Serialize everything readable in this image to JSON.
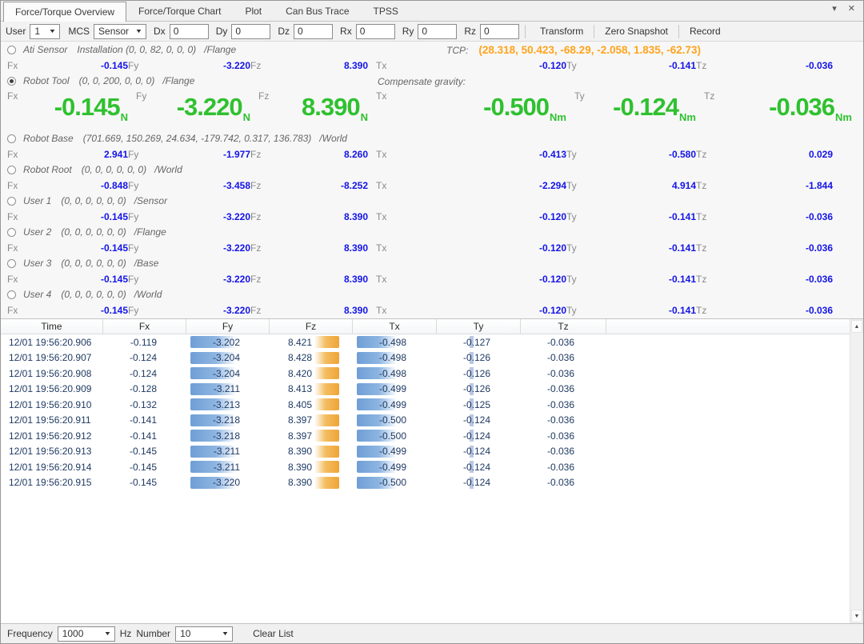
{
  "window": {
    "collapse_icon": "▾",
    "close_icon": "✕",
    "scroll_up_icon": "▲",
    "scroll_down_icon": "▼",
    "combo_arrow_icon": "▼"
  },
  "tabs": [
    {
      "label": "Force/Torque Overview",
      "active": true
    },
    {
      "label": "Force/Torque Chart",
      "active": false
    },
    {
      "label": "Plot",
      "active": false
    },
    {
      "label": "Can Bus Trace",
      "active": false
    },
    {
      "label": "TPSS",
      "active": false
    }
  ],
  "toolbar": {
    "user_label": "User",
    "user_value": "1",
    "mcs_label": "MCS",
    "mcs_value": "Sensor",
    "fields": [
      {
        "label": "Dx",
        "value": "0"
      },
      {
        "label": "Dy",
        "value": "0"
      },
      {
        "label": "Dz",
        "value": "0"
      },
      {
        "label": "Rx",
        "value": "0"
      },
      {
        "label": "Ry",
        "value": "0"
      },
      {
        "label": "Rz",
        "value": "0"
      }
    ],
    "buttons": [
      "Transform",
      "Zero Snapshot",
      "Record"
    ]
  },
  "tcp": {
    "label": "TCP:",
    "value": "(28.318, 50.423, -68.29, -2.058, 1.835, -62.73)"
  },
  "compensate_gravity_label": "Compensate gravity:",
  "axis": {
    "labels": [
      "Fx",
      "Fy",
      "Fz",
      "Tx",
      "Ty",
      "Tz"
    ],
    "big_units": [
      "N",
      "N",
      "N",
      "Nm",
      "Nm",
      "Nm"
    ]
  },
  "sensors": [
    {
      "name": "Ati Sensor",
      "params": "Installation (0, 0, 82, 0, 0, 0)",
      "frame": "/Flange",
      "selected": false,
      "big": false,
      "values": [
        "-0.145",
        "-3.220",
        "8.390",
        "-0.120",
        "-0.141",
        "-0.036"
      ]
    },
    {
      "name": "Robot Tool",
      "params": "(0, 0, 200, 0, 0, 0)",
      "frame": "/Flange",
      "selected": true,
      "big": true,
      "values": [
        "-0.145",
        "-3.220",
        "8.390",
        "-0.500",
        "-0.124",
        "-0.036"
      ]
    },
    {
      "name": "Robot Base",
      "params": "(701.669, 150.269, 24.634, -179.742, 0.317, 136.783)",
      "frame": "/World",
      "selected": false,
      "big": false,
      "values": [
        "2.941",
        "-1.977",
        "8.260",
        "-0.413",
        "-0.580",
        "0.029"
      ]
    },
    {
      "name": "Robot Root",
      "params": "(0, 0, 0, 0, 0, 0)",
      "frame": "/World",
      "selected": false,
      "big": false,
      "values": [
        "-0.848",
        "-3.458",
        "-8.252",
        "-2.294",
        "4.914",
        "-1.844"
      ]
    },
    {
      "name": "User 1",
      "params": "(0, 0, 0, 0, 0, 0)",
      "frame": "/Sensor",
      "selected": false,
      "big": false,
      "values": [
        "-0.145",
        "-3.220",
        "8.390",
        "-0.120",
        "-0.141",
        "-0.036"
      ]
    },
    {
      "name": "User 2",
      "params": "(0, 0, 0, 0, 0, 0)",
      "frame": "/Flange",
      "selected": false,
      "big": false,
      "values": [
        "-0.145",
        "-3.220",
        "8.390",
        "-0.120",
        "-0.141",
        "-0.036"
      ]
    },
    {
      "name": "User 3",
      "params": "(0, 0, 0, 0, 0, 0)",
      "frame": "/Base",
      "selected": false,
      "big": false,
      "values": [
        "-0.145",
        "-3.220",
        "8.390",
        "-0.120",
        "-0.141",
        "-0.036"
      ]
    },
    {
      "name": "User 4",
      "params": "(0, 0, 0, 0, 0, 0)",
      "frame": "/World",
      "selected": false,
      "big": false,
      "values": [
        "-0.145",
        "-3.220",
        "8.390",
        "-0.120",
        "-0.141",
        "-0.036"
      ]
    }
  ],
  "table": {
    "columns": [
      "Time",
      "Fx",
      "Fy",
      "Fz",
      "Tx",
      "Ty",
      "Tz"
    ],
    "rows": [
      [
        "12/01 19:56:20.906",
        "-0.119",
        "-3.202",
        "8.421",
        "-0.498",
        "-0.127",
        "-0.036"
      ],
      [
        "12/01 19:56:20.907",
        "-0.124",
        "-3.204",
        "8.428",
        "-0.498",
        "-0.126",
        "-0.036"
      ],
      [
        "12/01 19:56:20.908",
        "-0.124",
        "-3.204",
        "8.420",
        "-0.498",
        "-0.126",
        "-0.036"
      ],
      [
        "12/01 19:56:20.909",
        "-0.128",
        "-3.211",
        "8.413",
        "-0.499",
        "-0.126",
        "-0.036"
      ],
      [
        "12/01 19:56:20.910",
        "-0.132",
        "-3.213",
        "8.405",
        "-0.499",
        "-0.125",
        "-0.036"
      ],
      [
        "12/01 19:56:20.911",
        "-0.141",
        "-3.218",
        "8.397",
        "-0.500",
        "-0.124",
        "-0.036"
      ],
      [
        "12/01 19:56:20.912",
        "-0.141",
        "-3.218",
        "8.397",
        "-0.500",
        "-0.124",
        "-0.036"
      ],
      [
        "12/01 19:56:20.913",
        "-0.145",
        "-3.211",
        "8.390",
        "-0.499",
        "-0.124",
        "-0.036"
      ],
      [
        "12/01 19:56:20.914",
        "-0.145",
        "-3.211",
        "8.390",
        "-0.499",
        "-0.124",
        "-0.036"
      ],
      [
        "12/01 19:56:20.915",
        "-0.145",
        "-3.220",
        "8.390",
        "-0.500",
        "-0.124",
        "-0.036"
      ]
    ]
  },
  "footer": {
    "frequency_label": "Frequency",
    "frequency_value": "1000",
    "hz_label": "Hz",
    "number_label": "Number",
    "number_value": "10",
    "clear_list_label": "Clear List"
  },
  "colors": {
    "value_blue": "#1414e8",
    "big_green": "#2fc12f",
    "tcp_orange": "#ffa41c",
    "bar_blue": "#6f9ed6",
    "bar_orange": "#efa437",
    "table_text": "#1f3a63"
  }
}
